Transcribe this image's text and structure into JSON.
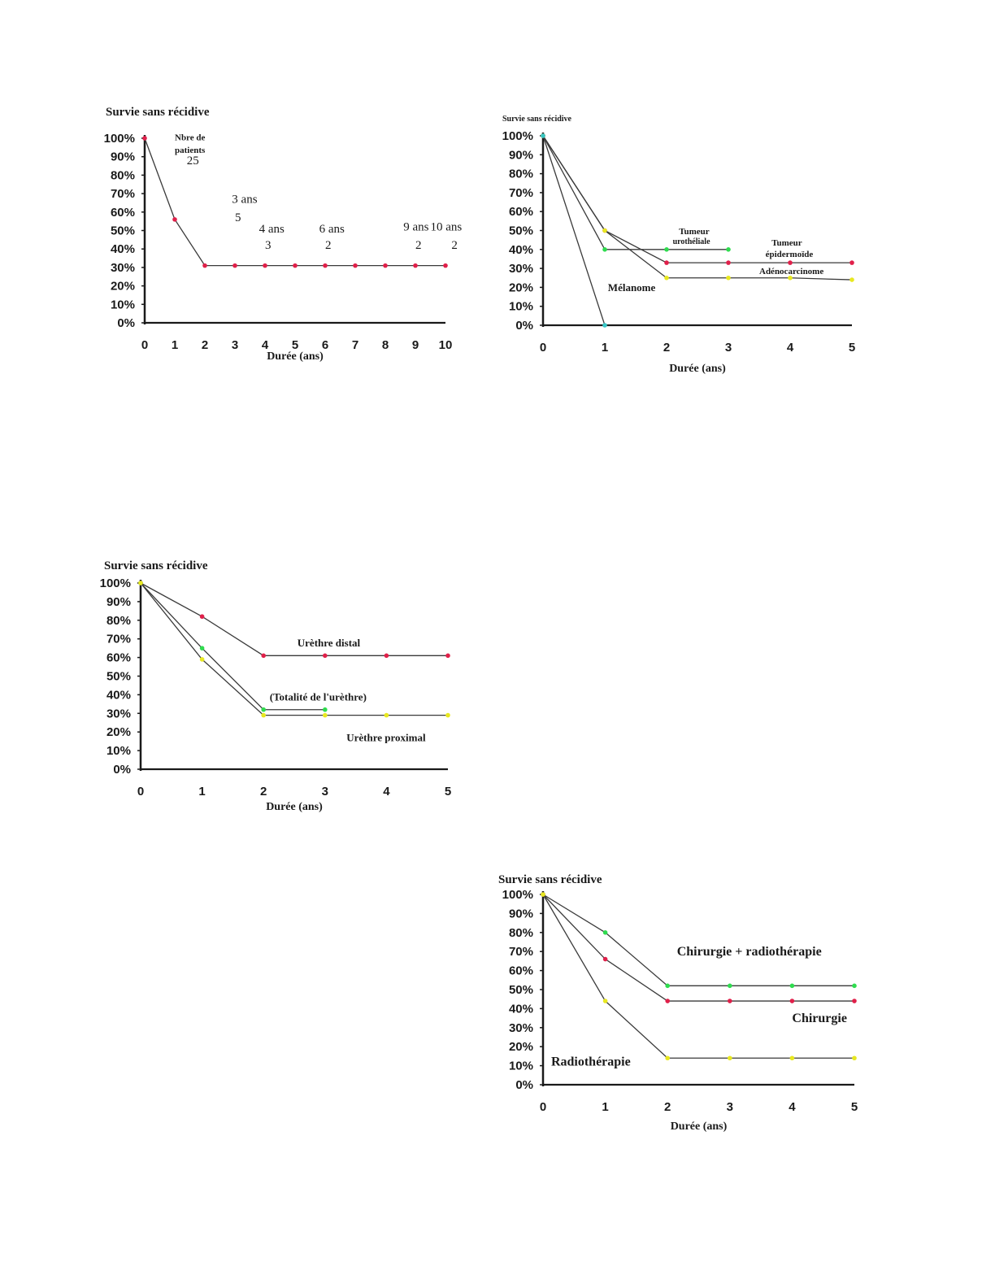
{
  "chart_data": [
    {
      "type": "line",
      "ylabel": "Survie sans récidive",
      "xlabel": "Durée (ans)",
      "x_ticks": [
        0,
        1,
        2,
        3,
        4,
        5,
        6,
        7,
        8,
        9,
        10
      ],
      "y_ticks": [
        "0%",
        "10%",
        "20%",
        "30%",
        "40%",
        "50%",
        "60%",
        "70%",
        "80%",
        "90%",
        "100%"
      ],
      "xlim": [
        0,
        10
      ],
      "ylim": [
        0,
        100
      ],
      "series": [
        {
          "color": "#e0204a",
          "x": [
            0,
            1,
            2,
            3,
            4,
            5,
            6,
            7,
            8,
            9,
            10
          ],
          "y": [
            100,
            56,
            31,
            31,
            31,
            31,
            31,
            31,
            31,
            31,
            31
          ]
        }
      ],
      "annotations": [
        {
          "text": "Nbre de",
          "x": 1,
          "y": 99,
          "size": 11,
          "bold": true
        },
        {
          "text": "patients",
          "x": 1,
          "y": 92,
          "size": 11,
          "bold": true
        },
        {
          "text": "25",
          "x": 1.4,
          "y": 86,
          "size": 15,
          "bold": false
        },
        {
          "text": "3 ans",
          "x": 2.9,
          "y": 65,
          "size": 15,
          "bold": false
        },
        {
          "text": "5",
          "x": 3.0,
          "y": 55,
          "size": 15,
          "bold": false
        },
        {
          "text": "4 ans",
          "x": 3.8,
          "y": 49,
          "size": 15,
          "bold": false
        },
        {
          "text": "3",
          "x": 4.0,
          "y": 40,
          "size": 15,
          "bold": false
        },
        {
          "text": "6 ans",
          "x": 5.8,
          "y": 49,
          "size": 15,
          "bold": false
        },
        {
          "text": "2",
          "x": 6.0,
          "y": 40,
          "size": 15,
          "bold": false
        },
        {
          "text": "9 ans",
          "x": 8.6,
          "y": 50,
          "size": 15,
          "bold": false
        },
        {
          "text": "2",
          "x": 9.0,
          "y": 40,
          "size": 15,
          "bold": false
        },
        {
          "text": "10 ans",
          "x": 9.5,
          "y": 50,
          "size": 15,
          "bold": false
        },
        {
          "text": "2",
          "x": 10.2,
          "y": 40,
          "size": 15,
          "bold": false
        }
      ]
    },
    {
      "type": "line",
      "ylabel": "Survie sans récidive",
      "xlabel": "Durée (ans)",
      "x_ticks": [
        0,
        1,
        2,
        3,
        4,
        5
      ],
      "y_ticks": [
        "0%",
        "10%",
        "20%",
        "30%",
        "40%",
        "50%",
        "60%",
        "70%",
        "80%",
        "90%",
        "100%"
      ],
      "xlim": [
        0,
        5
      ],
      "ylim": [
        0,
        100
      ],
      "series": [
        {
          "color": "#2fdc4f",
          "x": [
            0,
            1,
            2,
            3
          ],
          "y": [
            100,
            40,
            40,
            40
          ]
        },
        {
          "color": "#e0204a",
          "x": [
            0,
            1,
            2,
            3,
            4,
            5
          ],
          "y": [
            100,
            50,
            33,
            33,
            33,
            33
          ]
        },
        {
          "color": "#e8e820",
          "x": [
            0,
            1,
            2,
            3,
            4,
            5
          ],
          "y": [
            100,
            50,
            25,
            25,
            25,
            24
          ]
        },
        {
          "color": "#36c6c6",
          "x": [
            0,
            1
          ],
          "y": [
            100,
            0
          ]
        }
      ],
      "annotations": [
        {
          "text": "Tumeur",
          "x": 2.2,
          "y": 48,
          "size": 11,
          "bold": true
        },
        {
          "text": "urothéliale",
          "x": 2.1,
          "y": 43,
          "size": 10,
          "bold": true
        },
        {
          "text": "Tumeur",
          "x": 3.7,
          "y": 42,
          "size": 11,
          "bold": true
        },
        {
          "text": "épidermoïde",
          "x": 3.6,
          "y": 36,
          "size": 11,
          "bold": true
        },
        {
          "text": "Adénocarcinome",
          "x": 3.5,
          "y": 27,
          "size": 11,
          "bold": true
        },
        {
          "text": "Mélanome",
          "x": 1.05,
          "y": 18,
          "size": 13,
          "bold": true
        }
      ]
    },
    {
      "type": "line",
      "ylabel": "Survie sans récidive",
      "xlabel": "Durée (ans)",
      "x_ticks": [
        0,
        1,
        2,
        3,
        4,
        5
      ],
      "y_ticks": [
        "0%",
        "10%",
        "20%",
        "30%",
        "40%",
        "50%",
        "60%",
        "70%",
        "80%",
        "90%",
        "100%"
      ],
      "xlim": [
        0,
        5
      ],
      "ylim": [
        0,
        100
      ],
      "series": [
        {
          "color": "#e0204a",
          "x": [
            0,
            1,
            2,
            3,
            4,
            5
          ],
          "y": [
            100,
            82,
            61,
            61,
            61,
            61
          ]
        },
        {
          "color": "#2fdc4f",
          "x": [
            0,
            1,
            2,
            3
          ],
          "y": [
            100,
            65,
            32,
            32
          ]
        },
        {
          "color": "#e8e820",
          "x": [
            0,
            1,
            2,
            3,
            4,
            5
          ],
          "y": [
            100,
            59,
            29,
            29,
            29,
            29
          ]
        }
      ],
      "annotations": [
        {
          "text": "Urèthre distal",
          "x": 2.55,
          "y": 66,
          "size": 13,
          "bold": true
        },
        {
          "text": "(Totalité de l'urèthre)",
          "x": 2.1,
          "y": 37,
          "size": 13,
          "bold": true
        },
        {
          "text": "Urèthre proximal",
          "x": 3.35,
          "y": 15,
          "size": 13,
          "bold": true
        }
      ]
    },
    {
      "type": "line",
      "ylabel": "Survie sans récidive",
      "xlabel": "Durée (ans)",
      "x_ticks": [
        0,
        1,
        2,
        3,
        4,
        5
      ],
      "y_ticks": [
        "0%",
        "10%",
        "20%",
        "30%",
        "40%",
        "50%",
        "60%",
        "70%",
        "80%",
        "90%",
        "100%"
      ],
      "xlim": [
        0,
        5
      ],
      "ylim": [
        0,
        100
      ],
      "series": [
        {
          "color": "#2fdc4f",
          "x": [
            0,
            1,
            2,
            3,
            4,
            5
          ],
          "y": [
            100,
            80,
            52,
            52,
            52,
            52
          ]
        },
        {
          "color": "#e0204a",
          "x": [
            0,
            1,
            2,
            3,
            4,
            5
          ],
          "y": [
            100,
            66,
            44,
            44,
            44,
            44
          ]
        },
        {
          "color": "#e8e820",
          "x": [
            0,
            1,
            2,
            3,
            4,
            5
          ],
          "y": [
            100,
            44,
            14,
            14,
            14,
            14
          ]
        }
      ],
      "annotations": [
        {
          "text": "Chirurgie + radiothérapie",
          "x": 2.15,
          "y": 68,
          "size": 16,
          "bold": true
        },
        {
          "text": "Chirurgie",
          "x": 4.0,
          "y": 33,
          "size": 16,
          "bold": true
        },
        {
          "text": "Radiothérapie",
          "x": 0.13,
          "y": 10,
          "size": 16,
          "bold": true
        }
      ]
    }
  ]
}
